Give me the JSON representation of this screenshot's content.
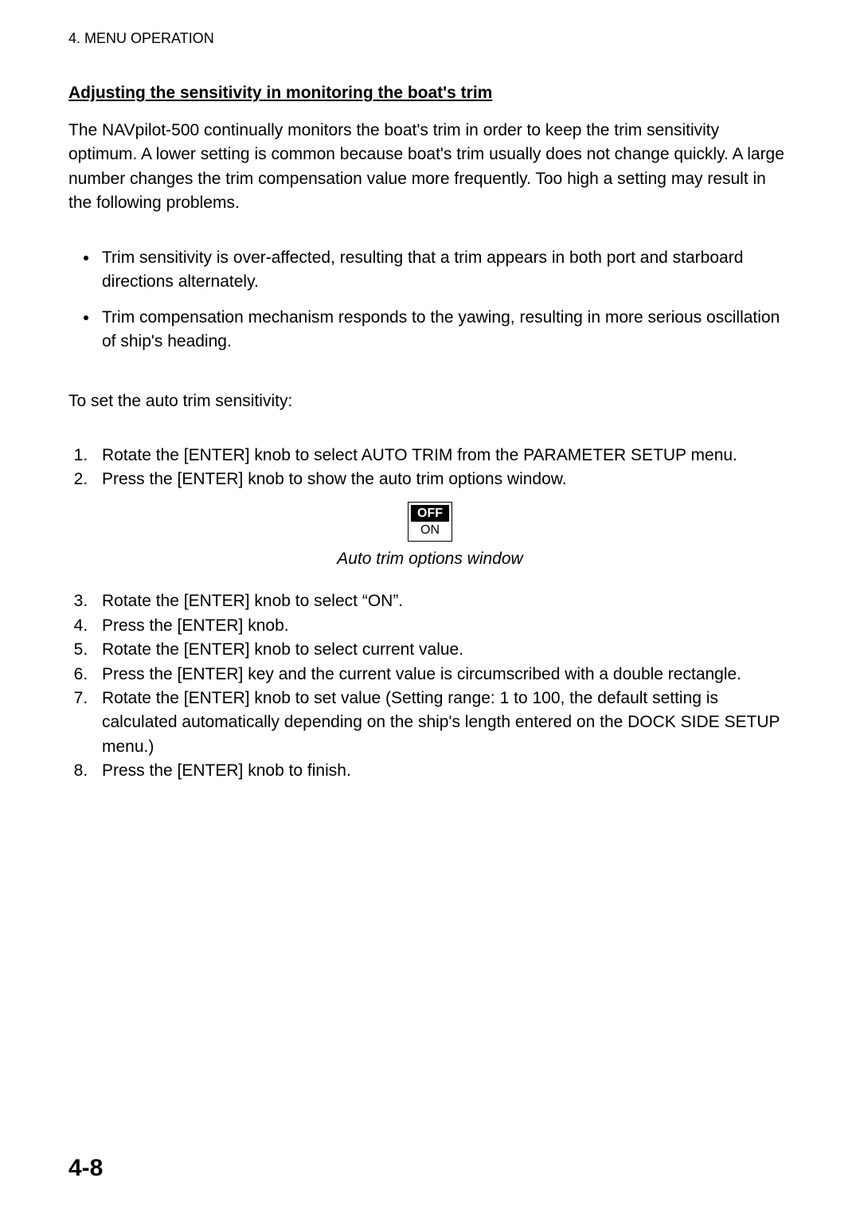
{
  "header": "4. MENU OPERATION",
  "section_title": "Adjusting the sensitivity in monitoring the boat's trim",
  "intro_para": "The NAVpilot-500 continually monitors the boat's trim in order to keep the trim sensitivity optimum. A lower setting is common because boat's trim usually does not change quickly. A large number changes the trim compensation value more frequently. Too high a setting may result in the following problems.",
  "bullets": [
    "Trim sensitivity is over-affected, resulting that a trim appears in both port and starboard directions alternately.",
    "Trim compensation mechanism responds to the yawing, resulting in more serious oscillation of ship's heading."
  ],
  "lead_in": "To set the auto trim sensitivity:",
  "steps_a": [
    "Rotate the [ENTER] knob to select AUTO TRIM from the PARAMETER SETUP menu.",
    "Press the [ENTER] knob to show the auto trim options window."
  ],
  "options_box": {
    "selected": "OFF",
    "unselected": "ON",
    "caption": "Auto trim options window",
    "border_color": "#000000",
    "selected_bg": "#000000",
    "selected_fg": "#ffffff",
    "font_size": 16
  },
  "steps_b": [
    "Rotate the [ENTER] knob to select “ON”.",
    "Press the [ENTER] knob.",
    "Rotate the [ENTER] knob to select current value.",
    "Press the [ENTER] key and the current value is circumscribed with a double rectangle.",
    "Rotate the [ENTER] knob to set value (Setting range: 1 to 100, the default setting is calculated automatically depending on the ship's length entered on the DOCK SIDE SETUP menu.)",
    "Press the [ENTER] knob to finish."
  ],
  "page_number": "4-8",
  "colors": {
    "text": "#000000",
    "background": "#ffffff"
  },
  "typography": {
    "body_font_size": 21,
    "header_font_size": 18,
    "page_num_font_size": 30,
    "line_height": 1.45
  }
}
